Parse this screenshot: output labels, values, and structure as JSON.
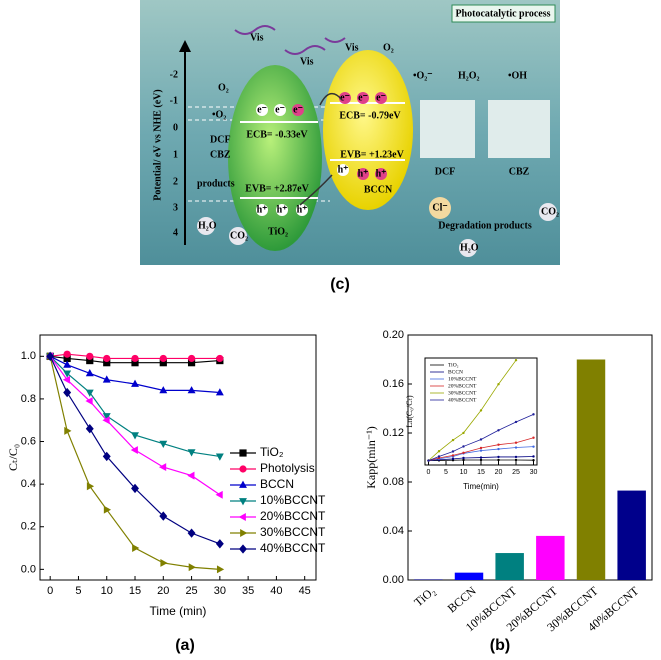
{
  "figure": {
    "panel_labels": [
      "(c)",
      "(a)",
      "(b)"
    ]
  },
  "diagram": {
    "title": "Photocatalytic process",
    "axis_label": "Potential/ eV vs NHE (eV)",
    "axis_ticks": [
      "-2",
      "-1",
      "0",
      "1",
      "2",
      "3",
      "4"
    ],
    "light": "Vis",
    "electron": "e⁻",
    "hole": "h⁺",
    "tio2": {
      "name": "TiO₂",
      "cb": "ECB= -0.33eV",
      "vb": "EVB= +2.87eV"
    },
    "bccn": {
      "name": "BCCN",
      "cb": "ECB= -0.79eV",
      "vb": "EVB= +1.23eV"
    },
    "left": {
      "o2": "O₂",
      "superoxide": "•O₂",
      "dcf": "DCF",
      "cbz": "CBZ",
      "products": "products",
      "h2o": "H₂O",
      "co2": "CO₂"
    },
    "right": {
      "o2": "O₂",
      "superoxide": "•O₂⁻",
      "h2o2": "H₂O₂",
      "oh": "•OH",
      "dcf": "DCF",
      "cbz": "CBZ",
      "cl": "Cl⁻",
      "products": "Degradation products",
      "co2": "CO₂",
      "h2o": "H₂O"
    }
  },
  "chart_data": [
    {
      "type": "line",
      "xlabel": "Time (min)",
      "ylabel": "Cₜ/C₀",
      "x": [
        0,
        3,
        7,
        10,
        15,
        20,
        25,
        30
      ],
      "xlim": [
        -1.8,
        47
      ],
      "xticks": [
        0,
        5,
        10,
        15,
        20,
        25,
        30,
        35,
        40,
        45
      ],
      "ylim": [
        -0.05,
        1.1
      ],
      "yticks": [
        {
          "value": 0,
          "label": "0.0"
        },
        0.2,
        0.4,
        0.6,
        0.8,
        {
          "value": 1,
          "label": "1.0"
        }
      ],
      "legend": "center right",
      "series": [
        {
          "name": "TiO₂",
          "color": "#000000",
          "marker": "square",
          "values": [
            1.0,
            0.99,
            0.98,
            0.97,
            0.97,
            0.97,
            0.97,
            0.98
          ]
        },
        {
          "name": "Photolysis",
          "color": "#ff0066",
          "marker": "circle",
          "values": [
            1.0,
            1.01,
            1.0,
            0.99,
            0.99,
            0.99,
            0.99,
            0.99
          ]
        },
        {
          "name": "BCCN",
          "color": "#0000cc",
          "marker": "triangle-up",
          "values": [
            1.0,
            0.96,
            0.92,
            0.89,
            0.87,
            0.84,
            0.84,
            0.83
          ]
        },
        {
          "name": "10%BCCNT",
          "color": "#008080",
          "marker": "triangle-down",
          "values": [
            1.0,
            0.92,
            0.83,
            0.72,
            0.63,
            0.59,
            0.55,
            0.53
          ]
        },
        {
          "name": "20%BCCNT",
          "color": "#ff00ff",
          "marker": "triangle-left",
          "values": [
            1.0,
            0.89,
            0.79,
            0.7,
            0.56,
            0.48,
            0.44,
            0.35
          ]
        },
        {
          "name": "30%BCCNT",
          "color": "#808000",
          "marker": "triangle-right",
          "values": [
            1.0,
            0.65,
            0.39,
            0.28,
            0.1,
            0.03,
            0.01,
            0.0
          ]
        },
        {
          "name": "40%BCCNT",
          "color": "#000080",
          "marker": "diamond",
          "values": [
            1.0,
            0.83,
            0.66,
            0.53,
            0.38,
            0.25,
            0.17,
            0.12
          ]
        }
      ]
    },
    {
      "type": "bar",
      "ylabel": "Kapp(min⁻¹)",
      "categories": [
        "TiO₂",
        "BCCN",
        "10%BCCNT",
        "20%BCCNT",
        "30%BCCNT",
        "40%BCCNT"
      ],
      "values": [
        0.0005,
        0.006,
        0.022,
        0.036,
        0.18,
        0.073
      ],
      "colors": [
        "#000080",
        "#0000ff",
        "#008080",
        "#ff00ff",
        "#808000",
        "#00008b"
      ],
      "ylim": [
        0,
        0.2
      ],
      "yticks": [
        {
          "value": 0,
          "label": "0.00"
        },
        0.04,
        0.08,
        0.12,
        0.16,
        {
          "value": 0.2,
          "label": "0.20"
        }
      ]
    },
    {
      "type": "line",
      "xlabel": "Time(min)",
      "ylabel": "Ln(C₀/Cₜ)",
      "x": [
        0,
        3,
        7,
        10,
        15,
        20,
        25,
        30
      ],
      "xlim": [
        -1,
        31
      ],
      "xticks": [
        0,
        5,
        10,
        15,
        20,
        25,
        30
      ],
      "ylim": [
        -0.2,
        4.7
      ],
      "legend": "upper left",
      "series": [
        {
          "name": "TiO₂",
          "color": "#000000",
          "marker": "dot",
          "values": [
            0,
            0.01,
            0.02,
            0.03,
            0.03,
            0.03,
            0.03,
            0.02
          ]
        },
        {
          "name": "BCCN",
          "color": "#000080",
          "marker": "dot",
          "values": [
            0,
            0.04,
            0.08,
            0.12,
            0.14,
            0.17,
            0.17,
            0.19
          ]
        },
        {
          "name": "10%BCCNT",
          "color": "#4169e1",
          "marker": "dot",
          "values": [
            0,
            0.08,
            0.19,
            0.33,
            0.46,
            0.53,
            0.6,
            0.64
          ]
        },
        {
          "name": "20%BCCNT",
          "color": "#d62728",
          "marker": "dot",
          "values": [
            0,
            0.12,
            0.24,
            0.36,
            0.58,
            0.73,
            0.82,
            1.05
          ]
        },
        {
          "name": "30%BCCNT",
          "color": "#9aa800",
          "marker": "dot",
          "values": [
            0,
            0.43,
            0.94,
            1.27,
            2.3,
            3.5,
            4.6,
            null
          ]
        },
        {
          "name": "40%BCCNT",
          "color": "#1f1f9a",
          "marker": "dot",
          "values": [
            0,
            0.19,
            0.42,
            0.65,
            0.97,
            1.39,
            1.77,
            2.12
          ]
        }
      ]
    }
  ]
}
